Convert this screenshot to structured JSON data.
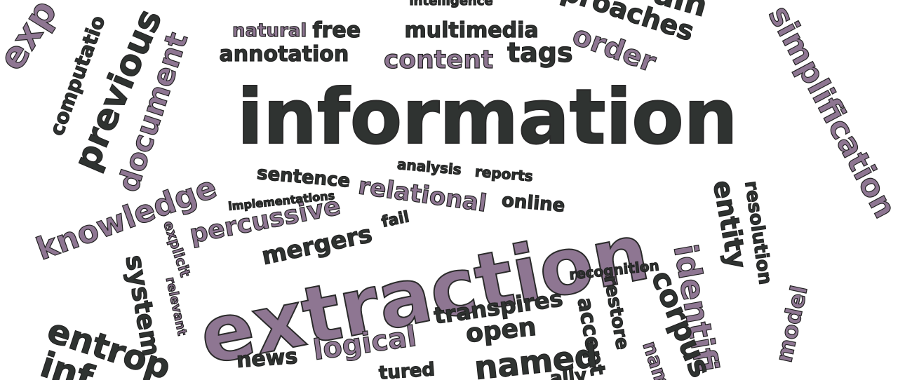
{
  "colors": {
    "dark": "#2f3331",
    "purple": "#8e7692",
    "background": "#ffffff"
  },
  "words": [
    {
      "id": "information",
      "text": "information",
      "color": "dark"
    },
    {
      "id": "extraction",
      "text": "extraction",
      "color": "purple"
    },
    {
      "id": "knowledge",
      "text": "knowledge",
      "color": "purple"
    },
    {
      "id": "previous",
      "text": "previous",
      "color": "dark"
    },
    {
      "id": "document",
      "text": "document",
      "color": "purple"
    },
    {
      "id": "computation",
      "text": "computatio",
      "color": "dark"
    },
    {
      "id": "exp",
      "text": "exp",
      "color": "purple"
    },
    {
      "id": "natural",
      "text": "natural",
      "color": "purple"
    },
    {
      "id": "free",
      "text": "free",
      "color": "dark"
    },
    {
      "id": "multimedia",
      "text": "multimedia",
      "color": "dark"
    },
    {
      "id": "order",
      "text": "order",
      "color": "purple"
    },
    {
      "id": "annotation",
      "text": "annotation",
      "color": "dark"
    },
    {
      "id": "content",
      "text": "content",
      "color": "purple"
    },
    {
      "id": "tags",
      "text": "tags",
      "color": "dark"
    },
    {
      "id": "intelligence",
      "text": "intelligence",
      "color": "dark"
    },
    {
      "id": "proaches",
      "text": "proaches",
      "color": "dark"
    },
    {
      "id": "domain",
      "text": "ain",
      "color": "dark"
    },
    {
      "id": "simplification",
      "text": "simplification",
      "color": "purple"
    },
    {
      "id": "sentence",
      "text": "sentence",
      "color": "dark"
    },
    {
      "id": "analysis",
      "text": "analysis",
      "color": "dark"
    },
    {
      "id": "reports",
      "text": "reports",
      "color": "dark"
    },
    {
      "id": "implementations",
      "text": "implementations",
      "color": "dark"
    },
    {
      "id": "relational",
      "text": "relational",
      "color": "purple"
    },
    {
      "id": "percussive",
      "text": "percussive",
      "color": "purple"
    },
    {
      "id": "online",
      "text": "online",
      "color": "dark"
    },
    {
      "id": "mergers",
      "text": "mergers",
      "color": "dark"
    },
    {
      "id": "fail",
      "text": "fail",
      "color": "dark"
    },
    {
      "id": "explicit",
      "text": "explicit",
      "color": "purple"
    },
    {
      "id": "relevant",
      "text": "relevant",
      "color": "purple"
    },
    {
      "id": "system",
      "text": "system",
      "color": "dark"
    },
    {
      "id": "entity",
      "text": "entity",
      "color": "dark"
    },
    {
      "id": "resolution",
      "text": "resolution",
      "color": "dark"
    },
    {
      "id": "identification",
      "text": "identifi",
      "color": "purple"
    },
    {
      "id": "corpus",
      "text": "corpus",
      "color": "dark"
    },
    {
      "id": "model",
      "text": "model",
      "color": "purple"
    },
    {
      "id": "recognition",
      "text": "recognition",
      "color": "dark"
    },
    {
      "id": "restore",
      "text": "restore",
      "color": "dark"
    },
    {
      "id": "accept",
      "text": "accept",
      "color": "dark"
    },
    {
      "id": "transpires",
      "text": "transpires",
      "color": "dark"
    },
    {
      "id": "open",
      "text": "open",
      "color": "dark"
    },
    {
      "id": "logical",
      "text": "logical",
      "color": "purple"
    },
    {
      "id": "news",
      "text": "news",
      "color": "dark"
    },
    {
      "id": "named",
      "text": "named",
      "color": "dark"
    },
    {
      "id": "entropy",
      "text": "entrop",
      "color": "dark"
    },
    {
      "id": "info",
      "text": "inf",
      "color": "dark"
    },
    {
      "id": "structured",
      "text": "tured",
      "color": "dark"
    },
    {
      "id": "names",
      "text": "nam",
      "color": "purple"
    },
    {
      "id": "usually",
      "text": "ally",
      "color": "dark"
    }
  ]
}
